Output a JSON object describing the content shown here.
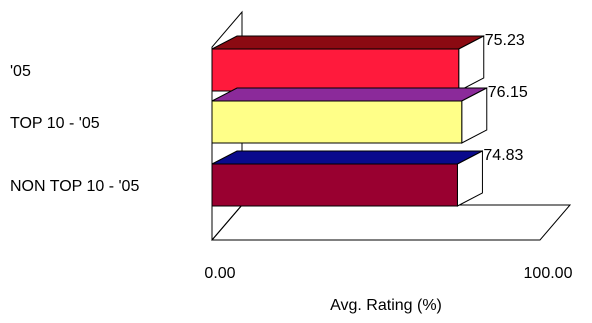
{
  "chart_data": {
    "type": "bar",
    "orientation": "horizontal",
    "style": "3d",
    "categories": [
      "'05",
      "TOP 10 - '05",
      "NON TOP 10 - '05"
    ],
    "values": [
      75.23,
      76.15,
      74.83
    ],
    "value_labels": [
      "75.23",
      "76.15",
      "74.83"
    ],
    "xlabel": "Avg. Rating (%)",
    "ylabel": "",
    "xlim": [
      0,
      100
    ],
    "tick_labels": [
      "0.00",
      "100.00"
    ],
    "grid": false,
    "legend": "none",
    "bar_colors": [
      {
        "front": "#FF1A3C",
        "top": "#8B0A12",
        "side": "#ffffff"
      },
      {
        "front": "#FFFF88",
        "top": "#8B2A9A",
        "side": "#ffffff"
      },
      {
        "front": "#990030",
        "top": "#0A0A8C",
        "side": "#ffffff"
      }
    ]
  }
}
